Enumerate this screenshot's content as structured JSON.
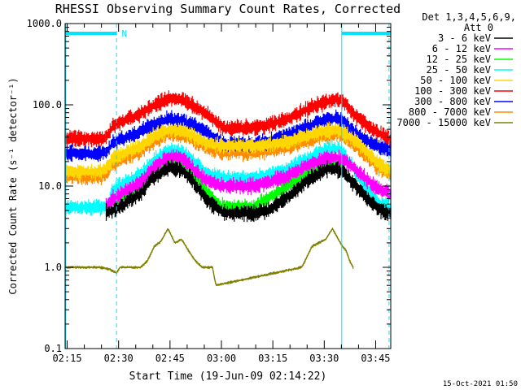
{
  "chart_data": {
    "type": "line",
    "title": "RHESSI Observing Summary Count Rates, Corrected",
    "xlabel": "Start Time (19-Jun-09 02:14:22)",
    "ylabel": "Corrected Count Rate (s⁻¹ detector⁻¹)",
    "yscale": "log",
    "ylim": [
      0.1,
      1000
    ],
    "y_ticks": [
      "0.1",
      "1.0",
      "10.0",
      "100.0",
      "1000.0"
    ],
    "xlim_minutes": [
      0,
      95
    ],
    "x_ticks": [
      {
        "label": "02:15",
        "t": 0.6
      },
      {
        "label": "02:30",
        "t": 15.6
      },
      {
        "label": "02:45",
        "t": 30.6
      },
      {
        "label": "03:00",
        "t": 45.6
      },
      {
        "label": "03:15",
        "t": 60.6
      },
      {
        "label": "03:30",
        "t": 75.6
      },
      {
        "label": "03:45",
        "t": 90.6
      }
    ],
    "legend": {
      "position": "top-right",
      "header": [
        "Det 1,3,4,5,6,9,",
        "Att 0"
      ]
    },
    "annotations": [
      {
        "text": "N",
        "t": 16.5
      }
    ],
    "night_bars": [
      [
        0,
        15.0
      ],
      [
        80.7,
        95
      ]
    ],
    "boundaries": [
      {
        "t": 0.2,
        "style": "solid"
      },
      {
        "t": 15.0,
        "style": "dashed"
      },
      {
        "t": 80.7,
        "style": "solid"
      },
      {
        "t": 94.5,
        "style": "dashed"
      }
    ],
    "bands_start": 12,
    "bands_end": 95,
    "series": [
      {
        "name": "3 - 6 keV",
        "color": "#000000",
        "x": [
          12,
          14,
          22,
          25,
          30,
          34,
          37,
          41,
          46,
          55,
          59,
          66,
          71,
          76,
          79,
          81,
          84,
          88,
          92,
          95
        ],
        "y": [
          4.8,
          5,
          8,
          12,
          16.5,
          16,
          12,
          7,
          4.7,
          4.6,
          5,
          8,
          12,
          16,
          16.5,
          15,
          11,
          7,
          5,
          4.6
        ]
      },
      {
        "name": "6 - 12 keV",
        "color": "#ff00ff",
        "x": [
          12,
          14,
          22,
          26,
          30,
          34,
          37,
          41,
          46,
          55,
          59,
          66,
          71,
          76,
          79,
          81,
          84,
          88,
          92,
          95
        ],
        "y": [
          5.5,
          7,
          11,
          17,
          23,
          22,
          17,
          12,
          10,
          10,
          11,
          14,
          18,
          22,
          23,
          21,
          17,
          12,
          9,
          8
        ]
      },
      {
        "name": "12 - 25 keV",
        "color": "#00ff00",
        "x": [
          12,
          14,
          22,
          25,
          30,
          34,
          37,
          41,
          45,
          55,
          59,
          66,
          71,
          76,
          79,
          80.7
        ],
        "y": [
          5.5,
          6.5,
          9.5,
          13,
          20,
          19.5,
          15,
          9,
          5.6,
          5.5,
          7,
          11,
          15,
          19,
          19.5,
          16
        ]
      },
      {
        "name": "25 - 50 keV",
        "color": "#00ffff",
        "x": [
          0,
          5,
          10,
          12,
          14,
          22,
          26,
          30,
          34,
          37,
          41,
          46,
          55,
          59,
          66,
          71,
          76,
          79,
          81,
          84,
          88,
          92,
          95
        ],
        "y": [
          5.5,
          5.5,
          5.5,
          5.5,
          9,
          14,
          21,
          27,
          26,
          21,
          15,
          12.5,
          12.5,
          13.5,
          17,
          22,
          28,
          29,
          26,
          17,
          9,
          6,
          5.3
        ]
      },
      {
        "name": "50 - 100 keV",
        "color": "#ffd700",
        "x": [
          0,
          10,
          12,
          14,
          22,
          26,
          30,
          34,
          37,
          41,
          46,
          55,
          59,
          66,
          71,
          76,
          79,
          81,
          84,
          88,
          92,
          95
        ],
        "y": [
          15,
          15,
          16,
          22,
          31,
          42,
          49,
          48,
          42,
          34,
          31,
          31,
          32,
          36,
          42,
          48,
          49,
          46,
          38,
          26,
          18,
          15
        ]
      },
      {
        "name": "100 - 300 keV",
        "color": "#ff0000",
        "x": [
          0,
          10,
          12,
          14,
          22,
          26,
          30,
          34,
          37,
          41,
          46,
          55,
          59,
          66,
          71,
          76,
          79,
          81,
          82,
          84,
          88,
          92,
          95
        ],
        "y": [
          38,
          38,
          40,
          56,
          78,
          100,
          118,
          116,
          100,
          78,
          52,
          52,
          56,
          70,
          90,
          108,
          115,
          110,
          100,
          78,
          56,
          44,
          38
        ]
      },
      {
        "name": "300 - 800 keV",
        "color": "#0000ff",
        "x": [
          0,
          10,
          12,
          14,
          22,
          26,
          30,
          34,
          37,
          41,
          46,
          55,
          59,
          66,
          71,
          76,
          79,
          81,
          84,
          88,
          92,
          95
        ],
        "y": [
          25,
          25,
          26,
          34,
          47,
          58,
          66,
          65,
          58,
          46,
          33,
          33,
          35,
          44,
          55,
          65,
          68,
          63,
          48,
          36,
          30,
          27
        ]
      },
      {
        "name": "800 - 7000 keV",
        "color": "#ff8c00",
        "x": [
          0,
          10,
          12,
          14,
          22,
          26,
          30,
          34,
          37,
          41,
          46,
          55,
          59,
          66,
          71,
          76,
          79,
          81,
          84,
          88,
          92,
          95
        ],
        "y": [
          13,
          13,
          14,
          19,
          27,
          36,
          44,
          43,
          37,
          30,
          26,
          26,
          27,
          31,
          36,
          42,
          44,
          41,
          33,
          23,
          16,
          14
        ]
      },
      {
        "name": "7000 - 15000 keV",
        "color": "#808000",
        "x": [
          0,
          3,
          10,
          13,
          15,
          16,
          22,
          24,
          26,
          28,
          30,
          32,
          34,
          36,
          38,
          40,
          43,
          44,
          69,
          70,
          72,
          74,
          76,
          78,
          80,
          81,
          82,
          83,
          84
        ],
        "y": [
          1.0,
          1.0,
          1.0,
          0.95,
          0.85,
          1.0,
          1.0,
          1.2,
          1.8,
          2.1,
          3.0,
          2.0,
          2.2,
          1.6,
          1.2,
          1.0,
          1.0,
          0.6,
          1.0,
          1.2,
          1.8,
          2.0,
          2.2,
          3.0,
          2.1,
          1.8,
          1.6,
          1.2,
          1.0
        ]
      }
    ]
  },
  "footer": {
    "timestamp": "15-Oct-2021 01:50"
  }
}
